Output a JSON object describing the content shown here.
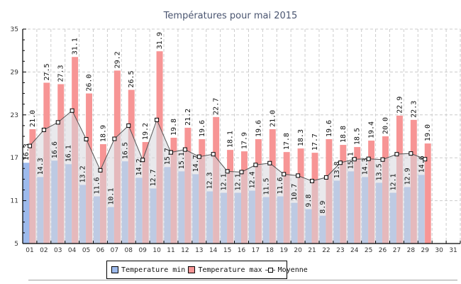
{
  "chart_data": {
    "type": "bar",
    "title": "Températures pour mai 2015",
    "xlabel": "",
    "ylabel": "",
    "ylim": [
      5,
      35
    ],
    "yticks": [
      5,
      11,
      17,
      23,
      29,
      35
    ],
    "grid": true,
    "legend_position": "bottom",
    "categories": [
      "01",
      "02",
      "03",
      "04",
      "05",
      "06",
      "07",
      "08",
      "09",
      "10",
      "11",
      "12",
      "13",
      "14",
      "15",
      "16",
      "17",
      "18",
      "19",
      "20",
      "21",
      "22",
      "23",
      "24",
      "25",
      "26",
      "27",
      "28",
      "29",
      "30",
      "31"
    ],
    "series": [
      {
        "name": "Temperature min",
        "kind": "bar",
        "color": "#9dbaec",
        "values": [
          16.3,
          14.3,
          16.6,
          16.1,
          13.2,
          11.6,
          10.1,
          16.5,
          14.2,
          12.7,
          15.7,
          15.1,
          14.7,
          12.3,
          12.1,
          12.1,
          12.4,
          11.5,
          11.6,
          10.7,
          9.8,
          8.9,
          13.8,
          15.1,
          14.3,
          13.5,
          12.1,
          12.9,
          14.6,
          null,
          null
        ]
      },
      {
        "name": "Temperature max",
        "kind": "bar",
        "color": "#f79595",
        "values": [
          21.0,
          27.5,
          27.3,
          31.1,
          26.0,
          18.9,
          29.2,
          26.5,
          19.2,
          31.9,
          19.8,
          21.2,
          19.6,
          22.7,
          18.1,
          17.9,
          19.6,
          21.0,
          17.8,
          18.3,
          17.7,
          19.6,
          18.8,
          18.5,
          19.4,
          20.0,
          22.9,
          22.3,
          19.0,
          null,
          null
        ]
      },
      {
        "name": "Moyenne",
        "kind": "line-area",
        "color": "#555555",
        "values": [
          18.65,
          20.9,
          21.95,
          23.6,
          19.6,
          15.25,
          19.65,
          21.5,
          16.7,
          22.3,
          17.75,
          18.15,
          17.15,
          17.5,
          15.1,
          15.0,
          16.0,
          16.25,
          14.7,
          14.5,
          13.75,
          14.25,
          16.3,
          16.8,
          16.85,
          16.75,
          17.5,
          17.6,
          16.8,
          null,
          null
        ]
      }
    ]
  }
}
